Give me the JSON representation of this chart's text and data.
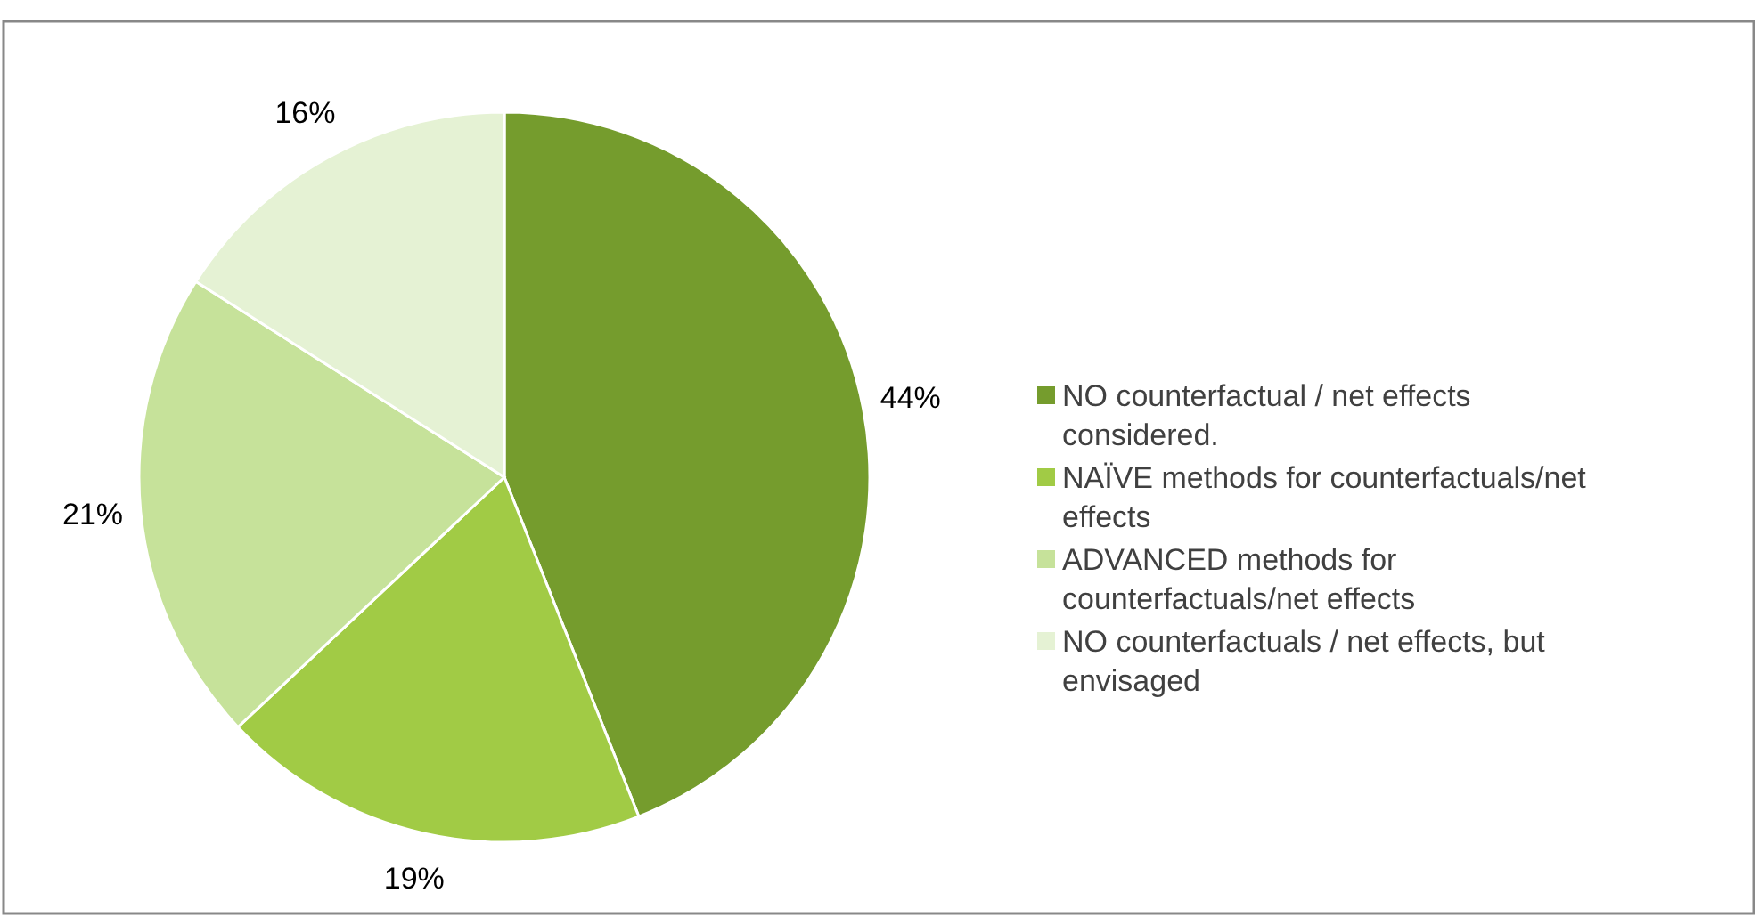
{
  "chart_data": {
    "type": "pie",
    "categories": [
      "NO counterfactual / net effects considered.",
      "NAÏVE methods for counterfactuals/net effects",
      "ADVANCED methods for counterfactuals/net effects",
      "NO counterfactuals / net effects, but envisaged"
    ],
    "values": [
      44,
      19,
      21,
      16
    ],
    "colors": [
      "#759c2d",
      "#a1cb45",
      "#c6e29a",
      "#e5f2d4"
    ],
    "value_labels": [
      "44%",
      "19%",
      "21%",
      "16%"
    ],
    "legend": "right"
  }
}
